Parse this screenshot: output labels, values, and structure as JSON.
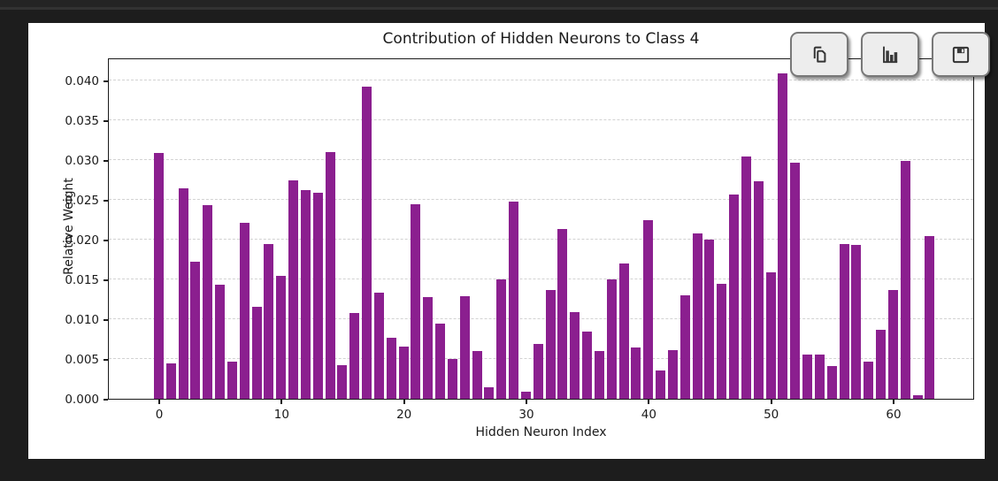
{
  "colors": {
    "page_background": "#1d1d1d",
    "top_strip": "#242424",
    "card_background": "#ffffff",
    "bar_color": "#8b1f8f",
    "axis_color": "#1a1a1a",
    "gridline_color": "#d2d2d2",
    "button_face": "#ededed",
    "button_border": "#787878",
    "icon_color": "#333333"
  },
  "toolbar": {
    "buttons": [
      {
        "id": "copy",
        "icon": "copy-icon"
      },
      {
        "id": "chart",
        "icon": "bar-chart-icon"
      },
      {
        "id": "save",
        "icon": "save-icon"
      }
    ]
  },
  "chart_data": {
    "type": "bar",
    "title": "Contribution of Hidden Neurons to Class 4",
    "xlabel": "Hidden Neuron Index",
    "ylabel": "Relative Weight",
    "x": [
      0,
      1,
      2,
      3,
      4,
      5,
      6,
      7,
      8,
      9,
      10,
      11,
      12,
      13,
      14,
      15,
      16,
      17,
      18,
      19,
      20,
      21,
      22,
      23,
      24,
      25,
      26,
      27,
      28,
      29,
      30,
      31,
      32,
      33,
      34,
      35,
      36,
      37,
      38,
      39,
      40,
      41,
      42,
      43,
      44,
      45,
      46,
      47,
      48,
      49,
      50,
      51,
      52,
      53,
      54,
      55,
      56,
      57,
      58,
      59,
      60,
      61,
      62,
      63
    ],
    "values": [
      0.0309,
      0.0045,
      0.0265,
      0.0172,
      0.0243,
      0.0143,
      0.0047,
      0.0221,
      0.0116,
      0.0194,
      0.0155,
      0.0274,
      0.0262,
      0.0259,
      0.031,
      0.0042,
      0.0108,
      0.0392,
      0.0133,
      0.0077,
      0.0066,
      0.0245,
      0.0128,
      0.0094,
      0.005,
      0.0129,
      0.006,
      0.0015,
      0.015,
      0.0248,
      0.0009,
      0.0069,
      0.0137,
      0.0213,
      0.0109,
      0.0085,
      0.006,
      0.015,
      0.017,
      0.0065,
      0.0225,
      0.0036,
      0.0061,
      0.013,
      0.0208,
      0.02,
      0.0144,
      0.0257,
      0.0305,
      0.0273,
      0.0159,
      0.0409,
      0.0297,
      0.0056,
      0.0056,
      0.0041,
      0.0194,
      0.0193,
      0.0047,
      0.0087,
      0.0137,
      0.0299,
      0.0005,
      0.0204
    ],
    "x_ticks": [
      0,
      10,
      20,
      30,
      40,
      50,
      60
    ],
    "y_ticks": [
      0,
      0.005,
      0.01,
      0.015,
      0.02,
      0.025,
      0.03,
      0.035,
      0.04
    ],
    "y_tick_labels": [
      "0.000",
      "0.005",
      "0.010",
      "0.015",
      "0.020",
      "0.025",
      "0.030",
      "0.035",
      "0.040"
    ],
    "ylim": [
      0,
      0.0428
    ],
    "grid": "horizontal-dashed",
    "legend": false
  }
}
